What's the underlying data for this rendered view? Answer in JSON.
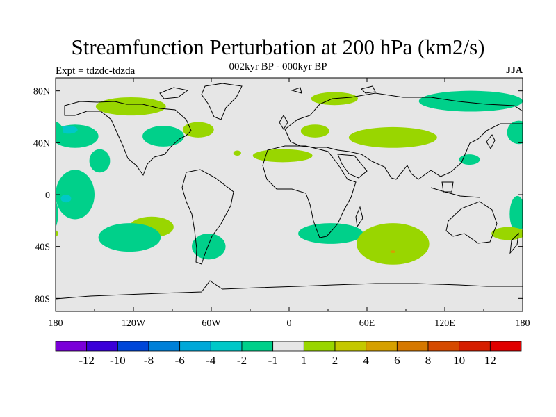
{
  "title": "Streamfunction Perturbation at 200 hPa (km2/s)",
  "subtitle": "002kyr BP - 000kyr BP",
  "left_label": "Expt = tdzdc-tdzda",
  "right_label": "JJA",
  "colors": {
    "background": "#e6e6e6",
    "pos_1_2": "#99d600",
    "neg_1_2": "#00d08a",
    "neg_2_4": "#00c8c8",
    "neg_4_6": "#00a0d8",
    "pos_4_6": "#d6a000",
    "coast": "#000000"
  },
  "chart_data": {
    "type": "map-contour",
    "projection": "cylindrical-equidistant",
    "x_ticks": [
      "180",
      "120W",
      "60W",
      "0",
      "60E",
      "120E",
      "180"
    ],
    "y_ticks": [
      "80N",
      "40N",
      "0",
      "40S",
      "80S"
    ],
    "colorbar": {
      "labels": [
        "-12",
        "-10",
        "-8",
        "-6",
        "-4",
        "-2",
        "-1",
        "1",
        "2",
        "4",
        "6",
        "8",
        "10",
        "12"
      ],
      "colors": [
        "#7a00d8",
        "#3a00d8",
        "#0046d8",
        "#0080d8",
        "#00a8d8",
        "#00c8c8",
        "#00d08a",
        "#e6e6e6",
        "#99d600",
        "#c4c800",
        "#d6a000",
        "#d67800",
        "#d64a00",
        "#d61e00",
        "#e00000"
      ]
    },
    "regions": [
      {
        "lon": -165,
        "lat": 45,
        "rlon": 18,
        "rlat": 9,
        "level": "neg_1_2"
      },
      {
        "lon": -170,
        "lat": 50,
        "rlon": 7,
        "rlat": 3,
        "level": "neg_2_4"
      },
      {
        "lon": -146,
        "lat": 26,
        "rlon": 8,
        "rlat": 9,
        "level": "neg_1_2"
      },
      {
        "lon": -165,
        "lat": 0,
        "rlon": 15,
        "rlat": 19,
        "level": "neg_1_2"
      },
      {
        "lon": -172,
        "lat": -3,
        "rlon": 4,
        "rlat": 3,
        "level": "neg_2_4"
      },
      {
        "lon": -122,
        "lat": 68,
        "rlon": 27,
        "rlat": 7,
        "level": "pos_1_2"
      },
      {
        "lon": -97,
        "lat": 45,
        "rlon": 16,
        "rlat": 8,
        "level": "neg_1_2"
      },
      {
        "lon": -70,
        "lat": 50,
        "rlon": 12,
        "rlat": 6,
        "level": "pos_1_2"
      },
      {
        "lon": -106,
        "lat": -25,
        "rlon": 17,
        "rlat": 8,
        "level": "pos_1_2"
      },
      {
        "lon": -123,
        "lat": -33,
        "rlon": 24,
        "rlat": 11,
        "level": "neg_1_2"
      },
      {
        "lon": -62,
        "lat": -40,
        "rlon": 13,
        "rlat": 10,
        "level": "neg_1_2"
      },
      {
        "lon": -40,
        "lat": 32,
        "rlon": 3,
        "rlat": 2,
        "level": "pos_1_2"
      },
      {
        "lon": -5,
        "lat": 30,
        "rlon": 23,
        "rlat": 5,
        "level": "pos_1_2"
      },
      {
        "lon": 20,
        "lat": 49,
        "rlon": 11,
        "rlat": 5,
        "level": "pos_1_2"
      },
      {
        "lon": 35,
        "lat": 74,
        "rlon": 18,
        "rlat": 5,
        "level": "pos_1_2"
      },
      {
        "lon": 32,
        "lat": -30,
        "rlon": 25,
        "rlat": 8,
        "level": "neg_1_2"
      },
      {
        "lon": 80,
        "lat": -38,
        "rlon": 28,
        "rlat": 16,
        "level": "pos_1_2"
      },
      {
        "lon": 80,
        "lat": -44,
        "rlon": 2,
        "rlat": 1,
        "level": "pos_4_6"
      },
      {
        "lon": 80,
        "lat": 44,
        "rlon": 34,
        "rlat": 8,
        "level": "pos_1_2"
      },
      {
        "lon": 140,
        "lat": 72,
        "rlon": 40,
        "rlat": 8,
        "level": "neg_1_2"
      },
      {
        "lon": 177,
        "lat": 48,
        "rlon": 9,
        "rlat": 9,
        "level": "neg_1_2"
      },
      {
        "lon": 139,
        "lat": 27,
        "rlon": 8,
        "rlat": 4,
        "level": "neg_1_2"
      },
      {
        "lon": 176,
        "lat": -15,
        "rlon": 6,
        "rlat": 14,
        "level": "neg_1_2"
      },
      {
        "lon": 169,
        "lat": -30,
        "rlon": 13,
        "rlat": 5,
        "level": "pos_1_2"
      }
    ]
  }
}
